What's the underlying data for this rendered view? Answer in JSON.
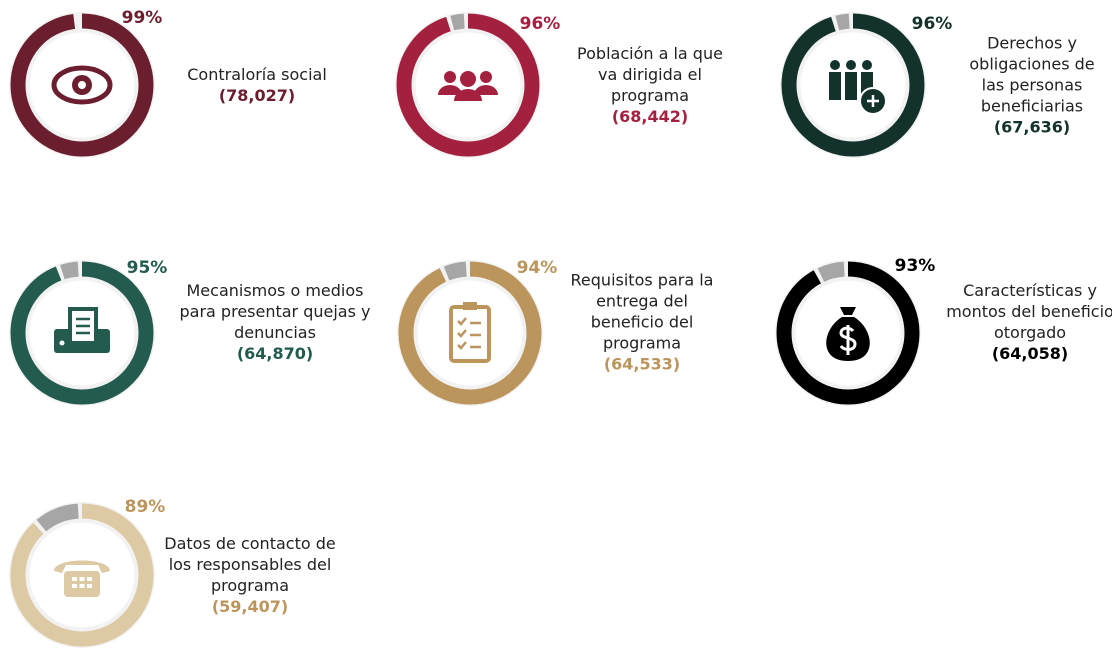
{
  "chart_data": [
    {
      "type": "donut",
      "title": "Contraloría social",
      "annotation": "(78,027)",
      "values": [
        99
      ],
      "value_labels": [
        "99%"
      ],
      "color": "#6b1e2e"
    },
    {
      "type": "donut",
      "title": "Población a la que va dirigida el programa",
      "annotation": "(68,442)",
      "values": [
        96
      ],
      "value_labels": [
        "96%"
      ],
      "color": "#a3213f"
    },
    {
      "type": "donut",
      "title": "Derechos y obligaciones de las personas beneficiarias",
      "annotation": "(67,636)",
      "values": [
        96
      ],
      "value_labels": [
        "96%"
      ],
      "color": "#13322b"
    },
    {
      "type": "donut",
      "title": "Mecanismos o medios para presentar quejas y denuncias",
      "annotation": "(64,870)",
      "values": [
        95
      ],
      "value_labels": [
        "95%"
      ],
      "color": "#235b4e"
    },
    {
      "type": "donut",
      "title": "Requisitos para la entrega del beneficio del programa",
      "annotation": "(64,533)",
      "values": [
        94
      ],
      "value_labels": [
        "94%"
      ],
      "color": "#bc955c"
    },
    {
      "type": "donut",
      "title": "Características y montos del beneficio otorgado",
      "annotation": "(64,058)",
      "values": [
        93
      ],
      "value_labels": [
        "93%"
      ],
      "color": "#000000"
    },
    {
      "type": "donut",
      "title": "Datos de contacto de los responsables del programa",
      "annotation": "(59,407)",
      "values": [
        89
      ],
      "value_labels": [
        "89%"
      ],
      "color": "#ddc9a3"
    }
  ]
}
